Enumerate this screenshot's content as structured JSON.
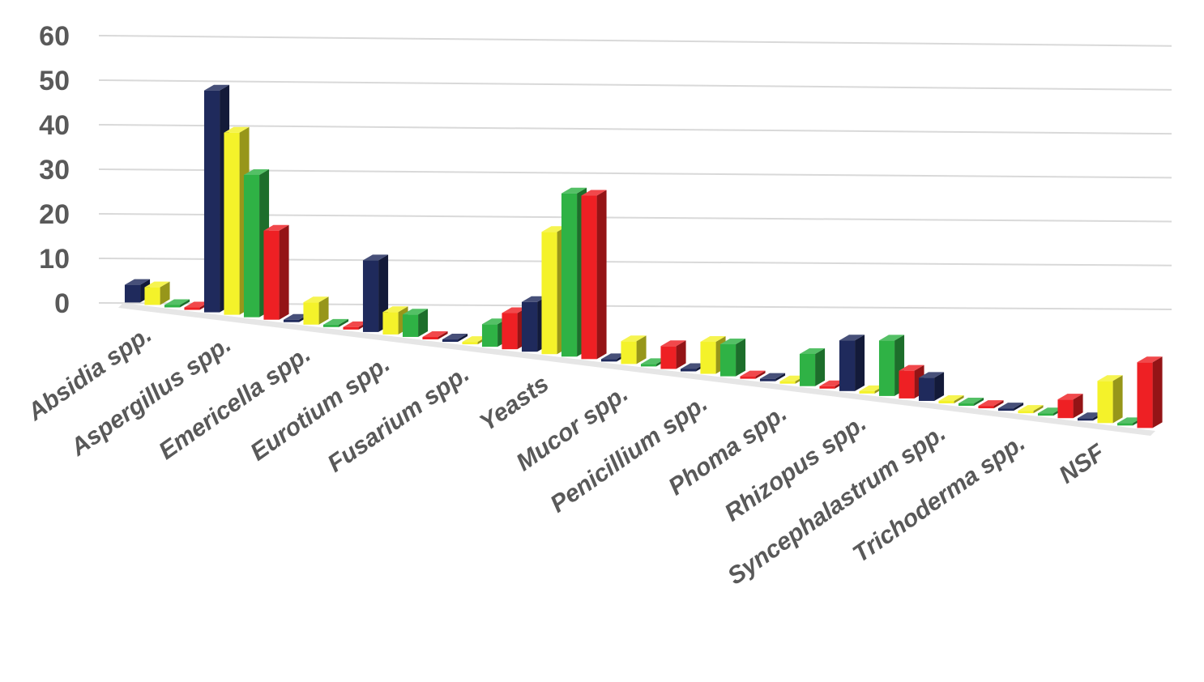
{
  "chart_data": {
    "type": "bar",
    "style": "3d-clustered-column",
    "ylim": [
      0,
      60
    ],
    "yticks": [
      0,
      10,
      20,
      30,
      40,
      50,
      60
    ],
    "grid": true,
    "legend": "none",
    "categories": [
      "Absidia spp.",
      "Aspergillus spp.",
      "Emericella spp.",
      "Eurotium spp.",
      "Fusarium spp.",
      "Yeasts",
      "Mucor spp.",
      "Penicillium spp.",
      "Phoma spp.",
      "Rhizopus spp.",
      "Syncephalastrum  spp.",
      "Trichoderma spp.",
      "NSF"
    ],
    "series": [
      {
        "color": "#1f2a5c",
        "values": [
          4,
          50,
          0,
          16,
          0,
          11,
          0,
          0,
          0,
          11,
          5,
          0,
          0
        ]
      },
      {
        "color": "#f4f22a",
        "values": [
          4,
          41,
          5,
          5,
          0,
          27,
          5,
          7,
          0,
          0,
          0,
          0,
          9
        ]
      },
      {
        "color": "#2fb245",
        "values": [
          0,
          32,
          0,
          5,
          5,
          36,
          0,
          7,
          7,
          12,
          0,
          0,
          0
        ]
      },
      {
        "color": "#ee2024",
        "values": [
          0,
          20,
          0,
          0,
          8,
          36,
          5,
          0,
          0,
          6,
          0,
          4,
          14
        ]
      }
    ]
  }
}
